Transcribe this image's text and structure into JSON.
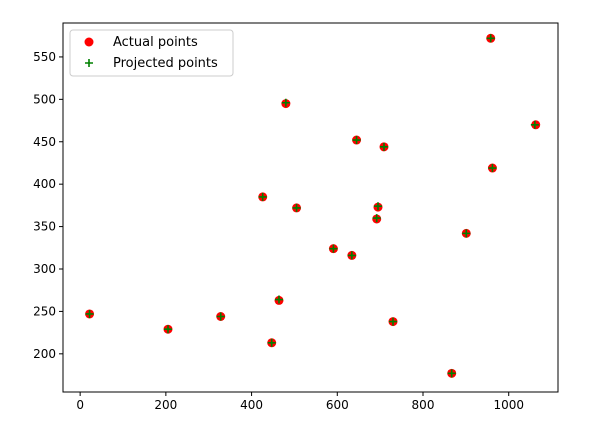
{
  "chart_data": {
    "type": "scatter",
    "xlim": [
      -40,
      1115
    ],
    "ylim": [
      155,
      590
    ],
    "x_ticks": [
      0,
      200,
      400,
      600,
      800,
      1000
    ],
    "y_ticks": [
      200,
      250,
      300,
      350,
      400,
      450,
      500,
      550
    ],
    "grid": false,
    "legend_position": "top-left",
    "series": [
      {
        "name": "Actual points",
        "marker": "circle",
        "color": "#ff0000",
        "points": [
          {
            "x": 22,
            "y": 247
          },
          {
            "x": 205,
            "y": 229
          },
          {
            "x": 328,
            "y": 244
          },
          {
            "x": 426,
            "y": 385
          },
          {
            "x": 447,
            "y": 213
          },
          {
            "x": 464,
            "y": 263
          },
          {
            "x": 480,
            "y": 495
          },
          {
            "x": 505,
            "y": 372
          },
          {
            "x": 591,
            "y": 324
          },
          {
            "x": 634,
            "y": 316
          },
          {
            "x": 645,
            "y": 452
          },
          {
            "x": 692,
            "y": 359
          },
          {
            "x": 695,
            "y": 373
          },
          {
            "x": 709,
            "y": 444
          },
          {
            "x": 730,
            "y": 238
          },
          {
            "x": 867,
            "y": 177
          },
          {
            "x": 901,
            "y": 342
          },
          {
            "x": 958,
            "y": 572
          },
          {
            "x": 962,
            "y": 419
          },
          {
            "x": 1063,
            "y": 470
          }
        ]
      },
      {
        "name": "Projected points",
        "marker": "plus",
        "color": "#008000",
        "points": [
          {
            "x": 22,
            "y": 247
          },
          {
            "x": 205,
            "y": 229
          },
          {
            "x": 328,
            "y": 244
          },
          {
            "x": 426,
            "y": 385
          },
          {
            "x": 447,
            "y": 213
          },
          {
            "x": 464,
            "y": 264
          },
          {
            "x": 480,
            "y": 496
          },
          {
            "x": 505,
            "y": 372
          },
          {
            "x": 591,
            "y": 324
          },
          {
            "x": 634,
            "y": 316
          },
          {
            "x": 645,
            "y": 452
          },
          {
            "x": 692,
            "y": 360
          },
          {
            "x": 695,
            "y": 374
          },
          {
            "x": 709,
            "y": 444
          },
          {
            "x": 730,
            "y": 238
          },
          {
            "x": 867,
            "y": 177
          },
          {
            "x": 901,
            "y": 342
          },
          {
            "x": 958,
            "y": 572
          },
          {
            "x": 962,
            "y": 419
          },
          {
            "x": 1061,
            "y": 470
          }
        ]
      }
    ]
  }
}
